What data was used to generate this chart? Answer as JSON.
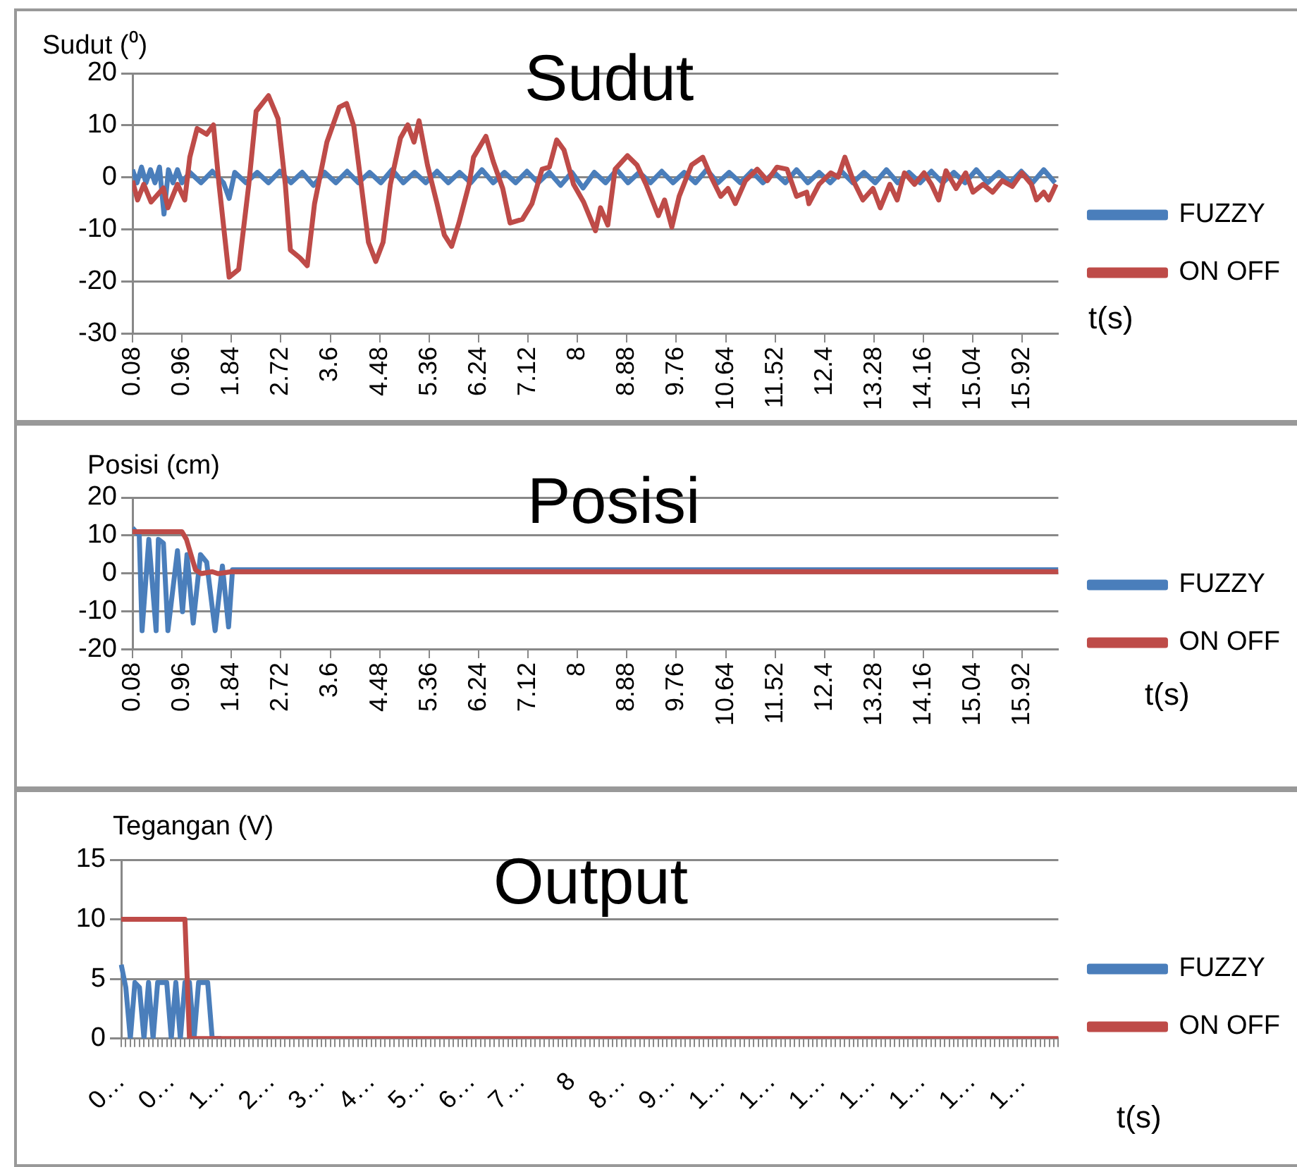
{
  "chart_data": [
    {
      "type": "line",
      "title": "Sudut",
      "xlabel": "t(s)",
      "ylabel": "Sudut (⁰)",
      "legend": "right",
      "grid": "y",
      "xlim": [
        0.08,
        16.56
      ],
      "xticks": [
        0.08,
        0.96,
        1.84,
        2.72,
        3.6,
        4.48,
        5.36,
        6.24,
        7.12,
        8,
        8.88,
        9.76,
        10.64,
        11.52,
        12.4,
        13.28,
        14.16,
        15.04,
        15.92
      ],
      "ylim": [
        -30,
        20
      ],
      "yticks": [
        -30,
        -20,
        -10,
        0,
        10,
        20
      ],
      "series": [
        {
          "name": "FUZZY",
          "color": "#4a7ebb",
          "x": [
            0.08,
            0.16,
            0.24,
            0.32,
            0.4,
            0.48,
            0.56,
            0.64,
            0.72,
            0.8,
            0.88,
            0.96,
            1.1,
            1.3,
            1.5,
            1.7,
            1.8,
            1.9,
            2.1,
            2.3,
            2.5,
            2.7,
            2.9,
            3.1,
            3.3,
            3.5,
            3.7,
            3.9,
            4.1,
            4.3,
            4.5,
            4.7,
            4.9,
            5.1,
            5.3,
            5.5,
            5.7,
            5.9,
            6.1,
            6.3,
            6.5,
            6.7,
            6.9,
            7.1,
            7.3,
            7.5,
            7.7,
            7.9,
            8.1,
            8.3,
            8.5,
            8.7,
            8.9,
            9.1,
            9.3,
            9.5,
            9.7,
            9.9,
            10.1,
            10.3,
            10.5,
            10.7,
            10.9,
            11.1,
            11.3,
            11.5,
            11.7,
            11.9,
            12.1,
            12.3,
            12.5,
            12.7,
            12.9,
            13.1,
            13.3,
            13.5,
            13.7,
            13.9,
            14.1,
            14.3,
            14.5,
            14.7,
            14.9,
            15.1,
            15.3,
            15.5,
            15.7,
            15.9,
            16.1,
            16.3,
            16.5
          ],
          "values": [
            1.5,
            -1,
            2,
            -1,
            1.5,
            -1,
            2,
            -7,
            1.5,
            -1,
            1.5,
            -1,
            1,
            -1,
            1.2,
            -1,
            -4,
            1,
            -1,
            1,
            -1,
            1.2,
            -1,
            1,
            -1.5,
            1,
            -1,
            1.2,
            -1,
            1,
            -1,
            1.5,
            -1,
            1,
            -1,
            1.2,
            -1,
            1,
            -1,
            1.5,
            -1,
            1,
            -1,
            1.2,
            -1,
            1,
            -1.5,
            1,
            -2,
            1,
            -1,
            1.5,
            -1,
            1,
            -1,
            1.2,
            -1,
            1,
            -1,
            1.5,
            -1,
            1,
            -1,
            1.2,
            -1,
            1,
            -1,
            1.5,
            -1,
            1,
            -1,
            1.2,
            -1,
            1,
            -1,
            1.5,
            -1,
            1,
            -1,
            1.2,
            -1,
            1,
            -1,
            1.5,
            -1,
            1,
            -1,
            1.2,
            -1,
            1.5,
            -1
          ]
        },
        {
          "name": "ON OFF",
          "color": "#be4b48",
          "x": [
            0.08,
            0.17,
            0.28,
            0.41,
            0.63,
            0.71,
            0.88,
            1.01,
            1.1,
            1.23,
            1.4,
            1.52,
            1.62,
            1.8,
            1.97,
            2.15,
            2.28,
            2.5,
            2.67,
            2.8,
            2.89,
            3.06,
            3.19,
            3.32,
            3.54,
            3.76,
            3.89,
            4.02,
            4.15,
            4.28,
            4.41,
            4.54,
            4.67,
            4.85,
            4.98,
            5.09,
            5.18,
            5.33,
            5.5,
            5.63,
            5.76,
            5.89,
            6.07,
            6.15,
            6.37,
            6.5,
            6.67,
            6.8,
            7.02,
            7.19,
            7.37,
            7.5,
            7.63,
            7.76,
            7.93,
            8.11,
            8.32,
            8.41,
            8.54,
            8.67,
            8.89,
            9.06,
            9.22,
            9.44,
            9.55,
            9.68,
            9.81,
            10.03,
            10.23,
            10.38,
            10.55,
            10.68,
            10.81,
            10.99,
            11.2,
            11.38,
            11.55,
            11.73,
            11.9,
            12.08,
            12.12,
            12.3,
            12.51,
            12.64,
            12.76,
            12.91,
            13.08,
            13.26,
            13.39,
            13.56,
            13.69,
            13.82,
            14,
            14.17,
            14.3,
            14.43,
            14.56,
            14.74,
            14.91,
            15.04,
            15.22,
            15.39,
            15.56,
            15.74,
            15.91,
            16.08,
            16.17,
            16.3,
            16.39,
            16.52
          ],
          "values": [
            -0.6,
            -4.3,
            -1.3,
            -4.7,
            -2,
            -5.8,
            -1.3,
            -4.3,
            3.9,
            9.4,
            8.3,
            10.1,
            -1.3,
            -19.1,
            -17.6,
            -1.3,
            12.7,
            15.7,
            11.3,
            -1.3,
            -13.9,
            -15.4,
            -16.9,
            -5,
            6.8,
            13.5,
            14.2,
            9.8,
            -1.3,
            -12.4,
            -16.1,
            -12.4,
            -1.3,
            7.6,
            10.1,
            6.8,
            10.9,
            2.4,
            -5,
            -11,
            -13.2,
            -8.7,
            -1.3,
            3.9,
            7.9,
            3.1,
            -2.1,
            -8.7,
            -8,
            -5,
            1.6,
            2,
            7.2,
            5.3,
            -1.3,
            -4.7,
            -10.2,
            -5.8,
            -9.1,
            1.6,
            4.2,
            2.4,
            -1.3,
            -7.3,
            -4.3,
            -9.5,
            -3.6,
            2.4,
            3.9,
            0.1,
            -3.6,
            -2.1,
            -5,
            -0.6,
            1.6,
            -0.6,
            2,
            1.6,
            -3.6,
            -2.8,
            -5,
            -1.3,
            0.9,
            0.1,
            3.9,
            -0.6,
            -4.3,
            -2.1,
            -5.8,
            -1.3,
            -4.3,
            0.9,
            -1.3,
            0.9,
            -1.3,
            -4.3,
            1.3,
            -2.1,
            0.9,
            -2.8,
            -1.3,
            -2.8,
            -0.6,
            -1.7,
            0.9,
            -1.3,
            -4.3,
            -2.8,
            -4.3,
            -1.3
          ]
        }
      ]
    },
    {
      "type": "line",
      "title": "Posisi",
      "xlabel": "t(s)",
      "ylabel": "Posisi (cm)",
      "legend": "right",
      "grid": "y",
      "xlim": [
        0.08,
        16.56
      ],
      "xticks": [
        0.08,
        0.96,
        1.84,
        2.72,
        3.6,
        4.48,
        5.36,
        6.24,
        7.12,
        8,
        8.88,
        9.76,
        10.64,
        11.52,
        12.4,
        13.28,
        14.16,
        15.04,
        15.92
      ],
      "ylim": [
        -20,
        20
      ],
      "yticks": [
        -20,
        -10,
        0,
        10,
        20
      ],
      "series": [
        {
          "name": "FUZZY",
          "color": "#4a7ebb",
          "x": [
            0.08,
            0.2,
            0.25,
            0.37,
            0.5,
            0.54,
            0.63,
            0.71,
            0.88,
            0.97,
            1.05,
            1.16,
            1.29,
            1.4,
            1.55,
            1.68,
            1.79,
            1.86,
            16.56
          ],
          "values": [
            12,
            10,
            -15,
            9,
            -15,
            9,
            8,
            -15,
            6,
            -10,
            5,
            -13,
            5,
            3,
            -15,
            2,
            -14,
            1,
            1
          ]
        },
        {
          "name": "ON OFF",
          "color": "#be4b48",
          "x": [
            0.08,
            0.96,
            1.04,
            1.12,
            1.2,
            1.3,
            1.5,
            1.6,
            1.84,
            16.56
          ],
          "values": [
            11,
            11,
            9,
            5,
            1,
            0,
            0.5,
            0,
            0.5,
            0.5
          ]
        }
      ]
    },
    {
      "type": "line",
      "title": "Output",
      "xlabel": "t(s)",
      "ylabel": "Tegangan (V)",
      "legend": "right",
      "grid": "y",
      "categories": [
        "0…",
        null,
        null,
        null,
        null,
        null,
        null,
        null,
        null,
        null,
        null,
        "0…",
        null,
        null,
        null,
        null,
        null,
        null,
        null,
        null,
        null,
        null,
        "1…",
        null,
        null,
        null,
        null,
        null,
        null,
        null,
        null,
        null,
        null,
        "2…",
        null,
        null,
        null,
        null,
        null,
        null,
        null,
        null,
        null,
        null,
        "3…",
        null,
        null,
        null,
        null,
        null,
        null,
        null,
        null,
        null,
        null,
        "4…",
        null,
        null,
        null,
        null,
        null,
        null,
        null,
        null,
        null,
        null,
        "5…",
        null,
        null,
        null,
        null,
        null,
        null,
        null,
        null,
        null,
        null,
        "6…",
        null,
        null,
        null,
        null,
        null,
        null,
        null,
        null,
        null,
        null,
        "7…",
        null,
        null,
        null,
        null,
        null,
        null,
        null,
        null,
        null,
        null,
        "8",
        null,
        null,
        null,
        null,
        null,
        null,
        null,
        null,
        null,
        null,
        "8…",
        null,
        null,
        null,
        null,
        null,
        null,
        null,
        null,
        null,
        null,
        "9…",
        null,
        null,
        null,
        null,
        null,
        null,
        null,
        null,
        null,
        null,
        "1…",
        null,
        null,
        null,
        null,
        null,
        null,
        null,
        null,
        null,
        null,
        "1…",
        null,
        null,
        null,
        null,
        null,
        null,
        null,
        null,
        null,
        null,
        "1…",
        null,
        null,
        null,
        null,
        null,
        null,
        null,
        null,
        null,
        null,
        "1…",
        null,
        null,
        null,
        null,
        null,
        null,
        null,
        null,
        null,
        null,
        "1…",
        null,
        null,
        null,
        null,
        null,
        null,
        null,
        null,
        null,
        null,
        "1…",
        null,
        null,
        null,
        null,
        null,
        null,
        null,
        null,
        null,
        null,
        "1…",
        null,
        null,
        null,
        null,
        null,
        null,
        null,
        null
      ],
      "ylim": [
        0,
        15
      ],
      "yticks": [
        0,
        5,
        10,
        15
      ],
      "series": [
        {
          "name": "FUZZY",
          "color": "#4a7ebb",
          "values": [
            6.2,
            4.3,
            0,
            4.7,
            4.3,
            0,
            4.7,
            0,
            4.7,
            4.7,
            4.7,
            0,
            4.7,
            0,
            4.7,
            4.7,
            0,
            4.7,
            4.7,
            4.7,
            0,
            0,
            0,
            null,
            null,
            null,
            null,
            null,
            null,
            null,
            null,
            null,
            null,
            null,
            null,
            null,
            null,
            null,
            null,
            null,
            null,
            null,
            null,
            null,
            null,
            null,
            null,
            null,
            null,
            null,
            null,
            null,
            null,
            null,
            null,
            null,
            null,
            null,
            null,
            null,
            null,
            null,
            null,
            null,
            null,
            null,
            null,
            null,
            null,
            null,
            null,
            null,
            null,
            null,
            null,
            null,
            null,
            null,
            null,
            null,
            null,
            null,
            null,
            null,
            null,
            null,
            null,
            null,
            null,
            null,
            null,
            null,
            null,
            null,
            null,
            null,
            null,
            null,
            null,
            null,
            null,
            null,
            null,
            null,
            null,
            null,
            null,
            null,
            null,
            null,
            null,
            null,
            null,
            null,
            null,
            null,
            null,
            null,
            null,
            null,
            null,
            null,
            null,
            null,
            null,
            null,
            null,
            null,
            null,
            null,
            null,
            null,
            null,
            null,
            null,
            null,
            null,
            null,
            null,
            null,
            null,
            null,
            null,
            null,
            null,
            null,
            null,
            null,
            null,
            null,
            null,
            null,
            null,
            null,
            null,
            null,
            null,
            null,
            null,
            null,
            null,
            null,
            null,
            null,
            null,
            null,
            null,
            null,
            null,
            null,
            null,
            null,
            null,
            null,
            null,
            null,
            null,
            null,
            null,
            null,
            null,
            null,
            null,
            null,
            null,
            null,
            null,
            null,
            null,
            null,
            null,
            null,
            null,
            null,
            null,
            null,
            null,
            null,
            null,
            null,
            null,
            null,
            null,
            null,
            null,
            null,
            null
          ]
        },
        {
          "name": "ON OFF",
          "color": "#be4b48",
          "values": [
            10,
            10,
            10,
            10,
            10,
            10,
            10,
            10,
            10,
            10,
            10,
            10,
            10,
            10,
            10,
            0,
            0,
            0,
            0,
            0,
            0,
            0,
            0,
            0,
            0,
            0,
            0,
            0,
            0,
            0,
            0,
            0,
            0,
            0,
            0,
            0,
            0,
            0,
            0,
            0,
            0,
            0,
            0,
            0,
            0,
            0,
            0,
            0,
            0,
            0,
            0,
            0,
            0,
            0,
            0,
            0,
            0,
            0,
            0,
            0,
            0,
            0,
            0,
            0,
            0,
            0,
            0,
            0,
            0,
            0,
            0,
            0,
            0,
            0,
            0,
            0,
            0,
            0,
            0,
            0,
            0,
            0,
            0,
            0,
            0,
            0,
            0,
            0,
            0,
            0,
            0,
            0,
            0,
            0,
            0,
            0,
            0,
            0,
            0,
            0,
            0,
            0,
            0,
            0,
            0,
            0,
            0,
            0,
            0,
            0,
            0,
            0,
            0,
            0,
            0,
            0,
            0,
            0,
            0,
            0,
            0,
            0,
            0,
            0,
            0,
            0,
            0,
            0,
            0,
            0,
            0,
            0,
            0,
            0,
            0,
            0,
            0,
            0,
            0,
            0,
            0,
            0,
            0,
            0,
            0,
            0,
            0,
            0,
            0,
            0,
            0,
            0,
            0,
            0,
            0,
            0,
            0,
            0,
            0,
            0,
            0,
            0,
            0,
            0,
            0,
            0,
            0,
            0,
            0,
            0,
            0,
            0,
            0,
            0,
            0,
            0,
            0,
            0,
            0,
            0,
            0,
            0,
            0,
            0,
            0,
            0,
            0,
            0,
            0,
            0,
            0,
            0,
            0,
            0,
            0,
            0,
            0,
            0,
            0,
            0,
            0,
            0,
            0,
            0,
            0,
            0,
            0
          ]
        }
      ]
    }
  ]
}
